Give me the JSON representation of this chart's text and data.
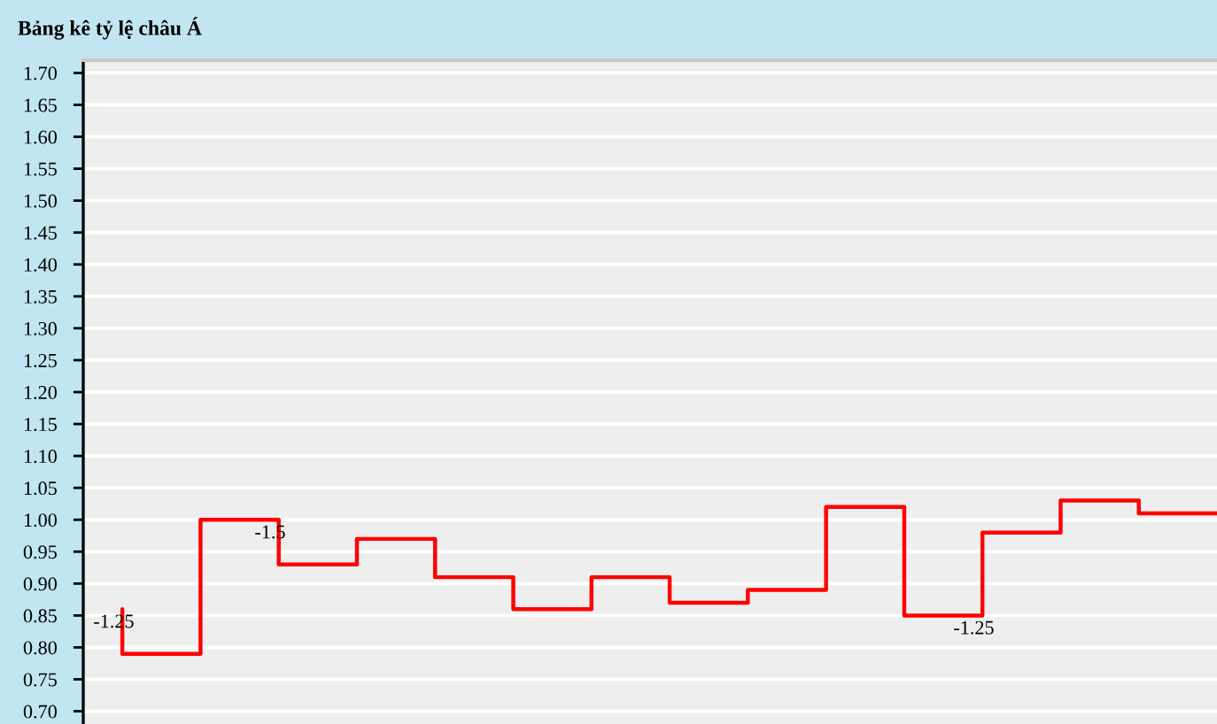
{
  "chart_data": {
    "type": "step",
    "title": "Bảng kê tỷ lệ châu Á",
    "categories": [
      null,
      null,
      null,
      null,
      null,
      null,
      null,
      null,
      null,
      null,
      null,
      null,
      null,
      null,
      null
    ],
    "series": [
      {
        "color": "#ff0000",
        "values": [
          0.86,
          0.79,
          1.0,
          0.93,
          0.97,
          0.91,
          0.86,
          0.91,
          0.87,
          0.89,
          1.02,
          0.85,
          0.98,
          1.03,
          1.01
        ]
      }
    ],
    "annotations": [
      {
        "text": "-1.25",
        "y": 0.86
      },
      {
        "text": "-1.5",
        "y": 1.0
      },
      {
        "text": "-1.25",
        "y": 0.85
      }
    ],
    "ylim": [
      0.68,
      1.72
    ],
    "yticks": [
      {
        "value": 0.7,
        "label": "0.70"
      },
      {
        "value": 0.75,
        "label": "0.75"
      },
      {
        "value": 0.8,
        "label": "0.80"
      },
      {
        "value": 0.85,
        "label": "0.85"
      },
      {
        "value": 0.9,
        "label": "0.90"
      },
      {
        "value": 0.95,
        "label": "0.95"
      },
      {
        "value": 1.0,
        "label": "1.00"
      },
      {
        "value": 1.05,
        "label": "1.05"
      },
      {
        "value": 1.1,
        "label": "1.10"
      },
      {
        "value": 1.15,
        "label": "1.15"
      },
      {
        "value": 1.2,
        "label": "1.20"
      },
      {
        "value": 1.25,
        "label": "1.25"
      },
      {
        "value": 1.3,
        "label": "1.30"
      },
      {
        "value": 1.35,
        "label": "1.35"
      },
      {
        "value": 1.4,
        "label": "1.40"
      },
      {
        "value": 1.45,
        "label": "1.45"
      },
      {
        "value": 1.5,
        "label": "1.50"
      },
      {
        "value": 1.55,
        "label": "1.55"
      },
      {
        "value": 1.6,
        "label": "1.60"
      },
      {
        "value": 1.65,
        "label": "1.65"
      },
      {
        "value": 1.7,
        "label": "1.70"
      }
    ],
    "grid": "y",
    "tick_labels": "y",
    "line_style": "solid"
  }
}
